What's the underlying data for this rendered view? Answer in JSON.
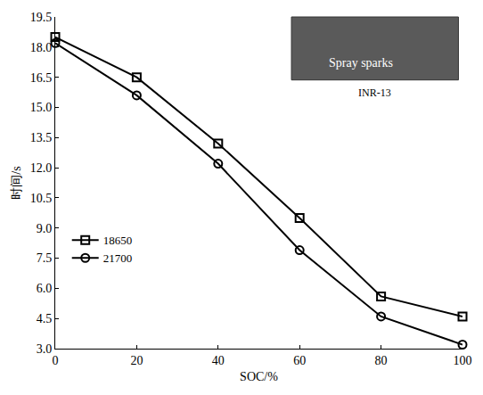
{
  "chart_data": {
    "type": "line",
    "x_label": "SOC/%",
    "y_label": "时间/s",
    "x": [
      0,
      20,
      40,
      60,
      80,
      100
    ],
    "series": [
      {
        "name": "18650",
        "color": "#000000",
        "marker": "square",
        "line_style": "solid",
        "values": [
          18.5,
          16.5,
          13.2,
          9.5,
          5.6,
          4.6
        ]
      },
      {
        "name": "21700",
        "color": "#000000",
        "marker": "circle",
        "line_style": "solid",
        "values": [
          18.2,
          15.6,
          12.2,
          7.9,
          4.6,
          3.2
        ]
      }
    ],
    "xlim": [
      0,
      100
    ],
    "xticks": [
      0,
      20,
      40,
      60,
      80,
      100
    ],
    "ylim": [
      3.0,
      19.5
    ],
    "yticks": [
      {
        "value": 3,
        "label": "3.0"
      },
      4.5,
      {
        "value": 6,
        "label": "6.0"
      },
      7.5,
      {
        "value": 9,
        "label": "9.0"
      },
      10.5,
      {
        "value": 12,
        "label": "12.0"
      },
      13.5,
      {
        "value": 15,
        "label": "15.0"
      },
      16.5,
      {
        "value": 18,
        "label": "18.0"
      },
      19.5
    ],
    "grid": false,
    "legend": "left",
    "annotations": [
      {
        "text": "Spray sparks"
      },
      {
        "text": "INR-13"
      }
    ]
  }
}
